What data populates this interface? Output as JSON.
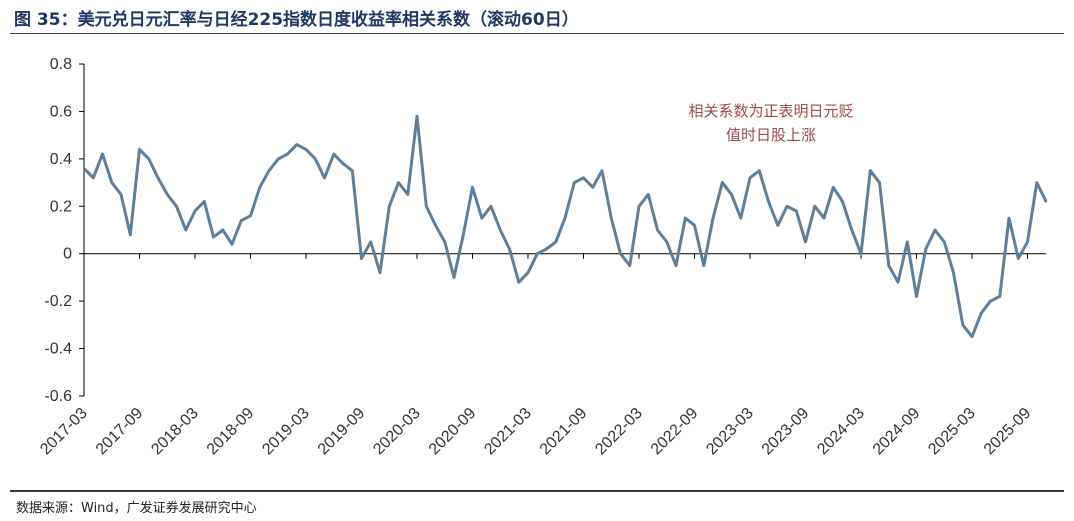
{
  "title": "图 35：美元兑日元汇率与日经225指数日度收益率相关系数（滚动60日）",
  "source": "数据来源：Wind，广发证券发展研究中心",
  "colors": {
    "line": "#5f7f99",
    "title": "#1f3964",
    "annotation": "#9c4a4a",
    "axis": "#000000"
  },
  "chart_data": {
    "type": "line",
    "title": "美元兑日元汇率与日经225指数日度收益率相关系数（滚动60日）",
    "xlabel": "",
    "ylabel": "",
    "ylim": [
      -0.6,
      0.8
    ],
    "y_ticks": [
      "0.8",
      "0.6",
      "0.4",
      "0.2",
      "0",
      "-0.2",
      "-0.4",
      "-0.6"
    ],
    "x_ticks": [
      "2017-03",
      "2017-09",
      "2018-03",
      "2018-09",
      "2019-03",
      "2019-09",
      "2020-03",
      "2020-09",
      "2021-03",
      "2021-09",
      "2022-03",
      "2022-09",
      "2023-03",
      "2023-09",
      "2024-03",
      "2024-09",
      "2025-03",
      "2025-09"
    ],
    "x_tick_dates": [
      "2017-03",
      "2017-09",
      "2018-03",
      "2018-09",
      "2019-03",
      "2019-09",
      "2020-03",
      "2020-09",
      "2021-03",
      "2021-09",
      "2022-03",
      "2022-09",
      "2023-03",
      "2023-09",
      "2024-03",
      "2024-09",
      "2025-03",
      "2025-09"
    ],
    "annotation": [
      "相关系数为正表明日元贬",
      "值时日股上涨"
    ],
    "grid": false,
    "series": [
      {
        "name": "",
        "x": [
          "2017-03",
          "2017-04",
          "2017-05",
          "2017-06",
          "2017-07",
          "2017-08",
          "2017-09",
          "2017-10",
          "2017-11",
          "2017-12",
          "2018-01",
          "2018-02",
          "2018-03",
          "2018-04",
          "2018-05",
          "2018-06",
          "2018-07",
          "2018-08",
          "2018-09",
          "2018-10",
          "2018-11",
          "2018-12",
          "2019-01",
          "2019-02",
          "2019-03",
          "2019-04",
          "2019-05",
          "2019-06",
          "2019-07",
          "2019-08",
          "2019-09",
          "2019-10",
          "2019-11",
          "2019-12",
          "2020-01",
          "2020-02",
          "2020-03",
          "2020-04",
          "2020-05",
          "2020-06",
          "2020-07",
          "2020-08",
          "2020-09",
          "2020-10",
          "2020-11",
          "2020-12",
          "2021-01",
          "2021-02",
          "2021-03",
          "2021-04",
          "2021-05",
          "2021-06",
          "2021-07",
          "2021-08",
          "2021-09",
          "2021-10",
          "2021-11",
          "2021-12",
          "2022-01",
          "2022-02",
          "2022-03",
          "2022-04",
          "2022-05",
          "2022-06",
          "2022-07",
          "2022-08",
          "2022-09",
          "2022-10",
          "2022-11",
          "2022-12",
          "2023-01",
          "2023-02",
          "2023-03",
          "2023-04",
          "2023-05",
          "2023-06",
          "2023-07",
          "2023-08",
          "2023-09",
          "2023-10",
          "2023-11",
          "2023-12",
          "2024-01",
          "2024-02",
          "2024-03",
          "2024-04",
          "2024-05",
          "2024-06",
          "2024-07",
          "2024-08",
          "2024-09",
          "2024-10",
          "2024-11",
          "2024-12",
          "2025-01",
          "2025-02",
          "2025-03",
          "2025-04",
          "2025-05",
          "2025-06",
          "2025-07",
          "2025-08",
          "2025-09",
          "2025-10",
          "2025-11"
        ],
        "values": [
          0.36,
          0.32,
          0.42,
          0.3,
          0.25,
          0.08,
          0.44,
          0.4,
          0.32,
          0.25,
          0.2,
          0.1,
          0.18,
          0.22,
          0.07,
          0.1,
          0.04,
          0.14,
          0.16,
          0.28,
          0.35,
          0.4,
          0.42,
          0.46,
          0.44,
          0.4,
          0.32,
          0.42,
          0.38,
          0.35,
          -0.02,
          0.05,
          -0.08,
          0.2,
          0.3,
          0.25,
          0.58,
          0.2,
          0.12,
          0.05,
          -0.1,
          0.08,
          0.28,
          0.15,
          0.2,
          0.1,
          0.02,
          -0.12,
          -0.08,
          0.0,
          0.02,
          0.05,
          0.15,
          0.3,
          0.32,
          0.28,
          0.35,
          0.15,
          0.0,
          -0.05,
          0.2,
          0.25,
          0.1,
          0.05,
          -0.05,
          0.15,
          0.12,
          -0.05,
          0.15,
          0.3,
          0.25,
          0.15,
          0.32,
          0.35,
          0.22,
          0.12,
          0.2,
          0.18,
          0.05,
          0.2,
          0.15,
          0.28,
          0.22,
          0.1,
          0.0,
          0.35,
          0.3,
          -0.05,
          -0.12,
          0.05,
          -0.18,
          0.02,
          0.1,
          0.05,
          -0.08,
          -0.3,
          -0.35,
          -0.25,
          -0.2,
          -0.18,
          0.15,
          -0.02,
          0.05,
          0.3,
          0.22
        ]
      }
    ]
  }
}
